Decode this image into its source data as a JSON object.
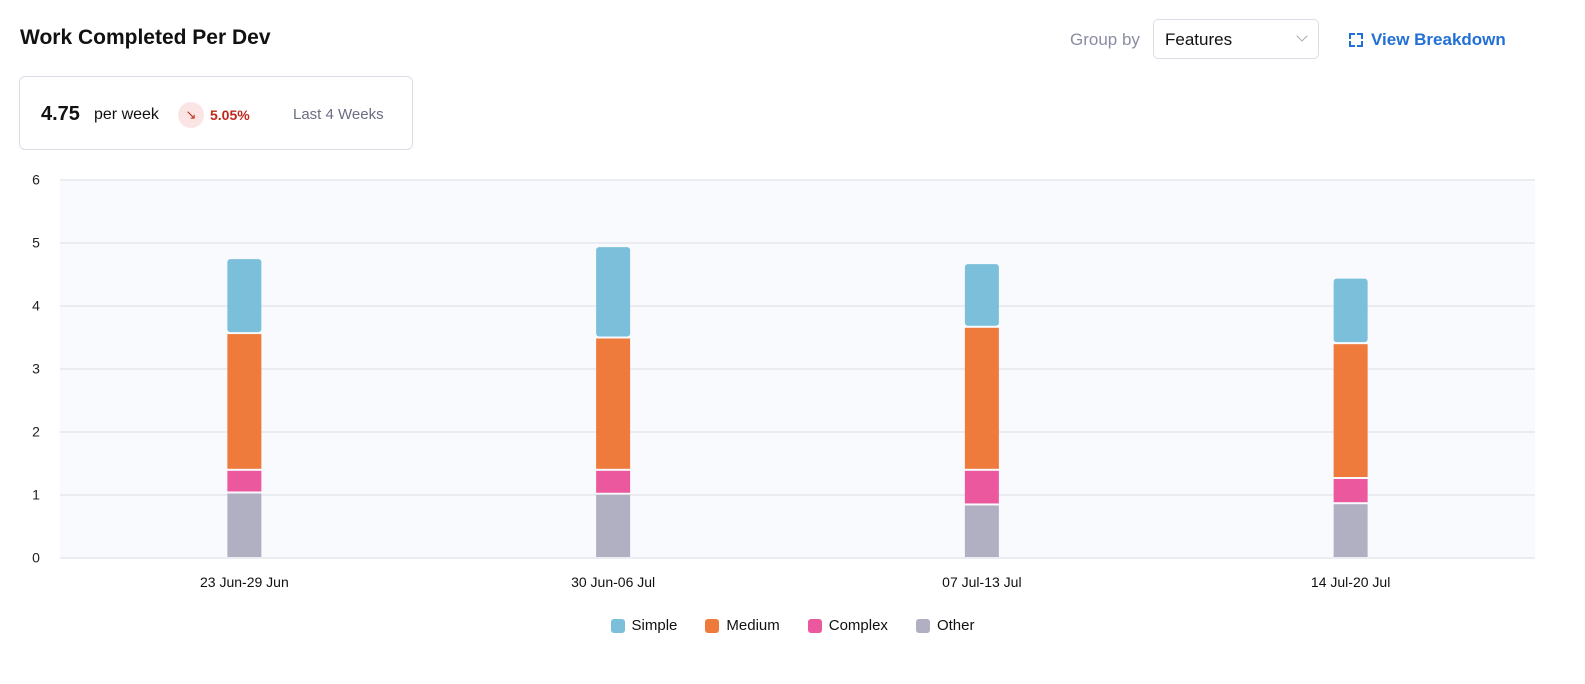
{
  "header": {
    "title": "Work Completed Per Dev",
    "group_by_label": "Group by",
    "group_by_value": "Features",
    "view_breakdown": "View Breakdown"
  },
  "stat": {
    "value": "4.75",
    "unit": "per week",
    "change": "5.05%",
    "change_direction": "down",
    "period": "Last 4 Weeks"
  },
  "chart_data": {
    "type": "bar",
    "stacked": true,
    "categories": [
      "23 Jun-29 Jun",
      "30 Jun-06 Jul",
      "07 Jul-13 Jul",
      "14 Jul-20 Jul"
    ],
    "series": [
      {
        "name": "Other",
        "color": "#b0b0c2",
        "values": [
          1.04,
          1.02,
          0.85,
          0.87
        ]
      },
      {
        "name": "Complex",
        "color": "#eb589d",
        "values": [
          0.36,
          0.38,
          0.55,
          0.4
        ]
      },
      {
        "name": "Medium",
        "color": "#ee7a3b",
        "values": [
          2.17,
          2.1,
          2.27,
          2.14
        ]
      },
      {
        "name": "Simple",
        "color": "#7bbfda",
        "values": [
          1.19,
          1.45,
          1.01,
          1.04
        ]
      }
    ],
    "legend_order": [
      "Simple",
      "Medium",
      "Complex",
      "Other"
    ],
    "yticks": [
      "0",
      "1",
      "2",
      "3",
      "4",
      "5",
      "6"
    ],
    "ylim": [
      0,
      6
    ],
    "grid": true,
    "legend_position": "bottom"
  }
}
